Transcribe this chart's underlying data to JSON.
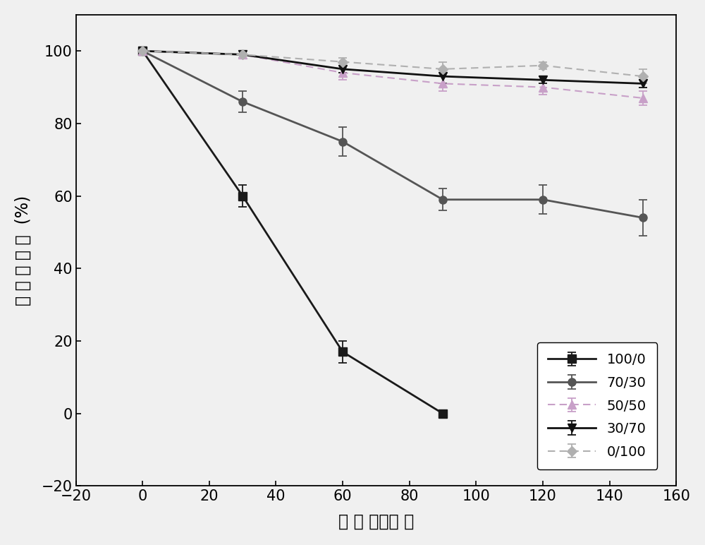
{
  "series": [
    {
      "label": "100/0",
      "x": [
        0,
        30,
        60,
        90
      ],
      "y": [
        100,
        60,
        17,
        0
      ],
      "yerr": [
        1,
        3,
        3,
        1
      ],
      "color": "#1a1a1a",
      "linestyle": "-",
      "marker": "s",
      "linewidth": 2.0,
      "markersize": 8,
      "dashes": []
    },
    {
      "label": "70/30",
      "x": [
        0,
        30,
        60,
        90,
        120,
        150
      ],
      "y": [
        100,
        86,
        75,
        59,
        59,
        54
      ],
      "yerr": [
        1,
        3,
        4,
        3,
        4,
        5
      ],
      "color": "#555555",
      "linestyle": "-",
      "marker": "o",
      "linewidth": 2.0,
      "markersize": 8,
      "dashes": []
    },
    {
      "label": "50/50",
      "x": [
        0,
        30,
        60,
        90,
        120,
        150
      ],
      "y": [
        100,
        99,
        94,
        91,
        90,
        87
      ],
      "yerr": [
        1,
        1,
        2,
        2,
        2,
        2
      ],
      "color": "#c8a0c8",
      "linestyle": "--",
      "marker": "^",
      "linewidth": 1.5,
      "markersize": 8,
      "dashes": [
        5,
        3
      ]
    },
    {
      "label": "30/70",
      "x": [
        0,
        30,
        60,
        90,
        120,
        150
      ],
      "y": [
        100,
        99,
        95,
        93,
        92,
        91
      ],
      "yerr": [
        1,
        1,
        1,
        2,
        1,
        1
      ],
      "color": "#111111",
      "linestyle": "-",
      "marker": "v",
      "linewidth": 2.0,
      "markersize": 8,
      "dashes": []
    },
    {
      "label": "0/100",
      "x": [
        0,
        30,
        60,
        90,
        120,
        150
      ],
      "y": [
        100,
        99,
        97,
        95,
        96,
        93
      ],
      "yerr": [
        1,
        1,
        1,
        2,
        1,
        2
      ],
      "color": "#b0b0b0",
      "linestyle": "--",
      "marker": "D",
      "linewidth": 1.5,
      "markersize": 7,
      "dashes": [
        5,
        3
      ]
    }
  ],
  "xlabel": "时 间 （分钟 ）",
  "ylabel": "剩 余 重 量 率  (%)",
  "xlim": [
    -20,
    160
  ],
  "ylim": [
    -20,
    110
  ],
  "xticks": [
    -20,
    0,
    20,
    40,
    60,
    80,
    100,
    120,
    140,
    160
  ],
  "yticks": [
    -20,
    0,
    20,
    40,
    60,
    80,
    100
  ],
  "background_color": "#f0f0f0",
  "plot_bg_color": "#f0f0f0",
  "xlabel_fontsize": 17,
  "ylabel_fontsize": 17,
  "tick_fontsize": 15,
  "legend_fontsize": 14
}
